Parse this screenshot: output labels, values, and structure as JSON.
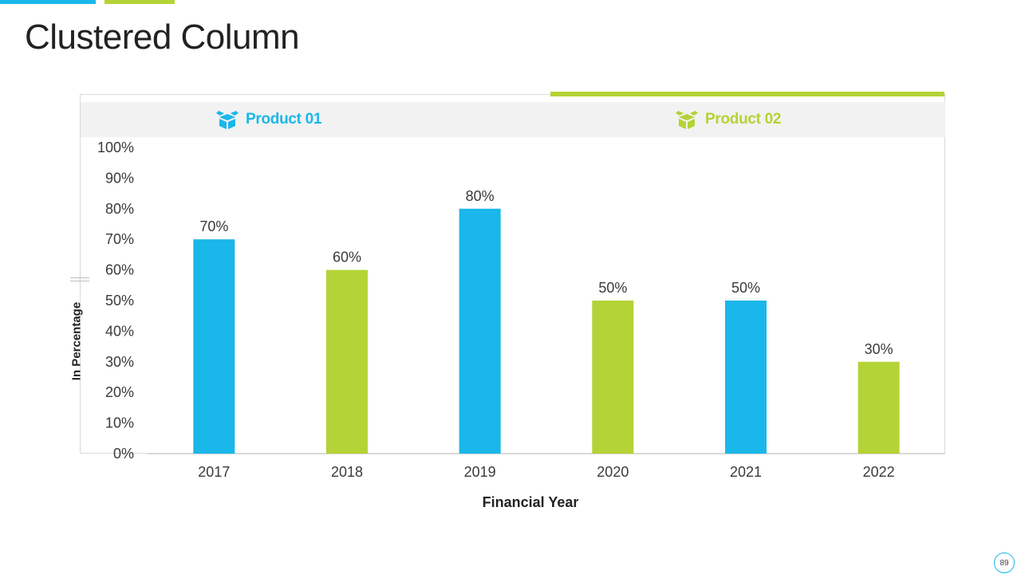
{
  "slide": {
    "title": "Clustered Column",
    "page_number": "89"
  },
  "colors": {
    "product_01": "#1ab7ea",
    "product_02": "#b4d336",
    "axis_text": "#3a3a3a"
  },
  "legend": [
    {
      "label": "Product 01",
      "icon": "box-icon",
      "color": "#1ab7ea"
    },
    {
      "label": "Product 02",
      "icon": "box-icon",
      "color": "#b4d336"
    }
  ],
  "chart_data": {
    "type": "bar",
    "categories": [
      "2017",
      "2018",
      "2019",
      "2020",
      "2021",
      "2022"
    ],
    "values": [
      70,
      60,
      80,
      50,
      50,
      30
    ],
    "data_labels": [
      "70%",
      "60%",
      "80%",
      "50%",
      "50%",
      "30%"
    ],
    "bar_series": [
      "Product 01",
      "Product 02",
      "Product 01",
      "Product 02",
      "Product 01",
      "Product 02"
    ],
    "bar_colors": [
      "#1ab7ea",
      "#b4d336",
      "#1ab7ea",
      "#b4d336",
      "#1ab7ea",
      "#b4d336"
    ],
    "xlabel": "Financial Year",
    "ylabel": "In Percentage",
    "ylim": [
      0,
      100
    ],
    "yticks": [
      "0%",
      "10%",
      "20%",
      "30%",
      "40%",
      "50%",
      "60%",
      "70%",
      "80%",
      "90%",
      "100%"
    ],
    "grid": false,
    "legend_position": "top"
  }
}
